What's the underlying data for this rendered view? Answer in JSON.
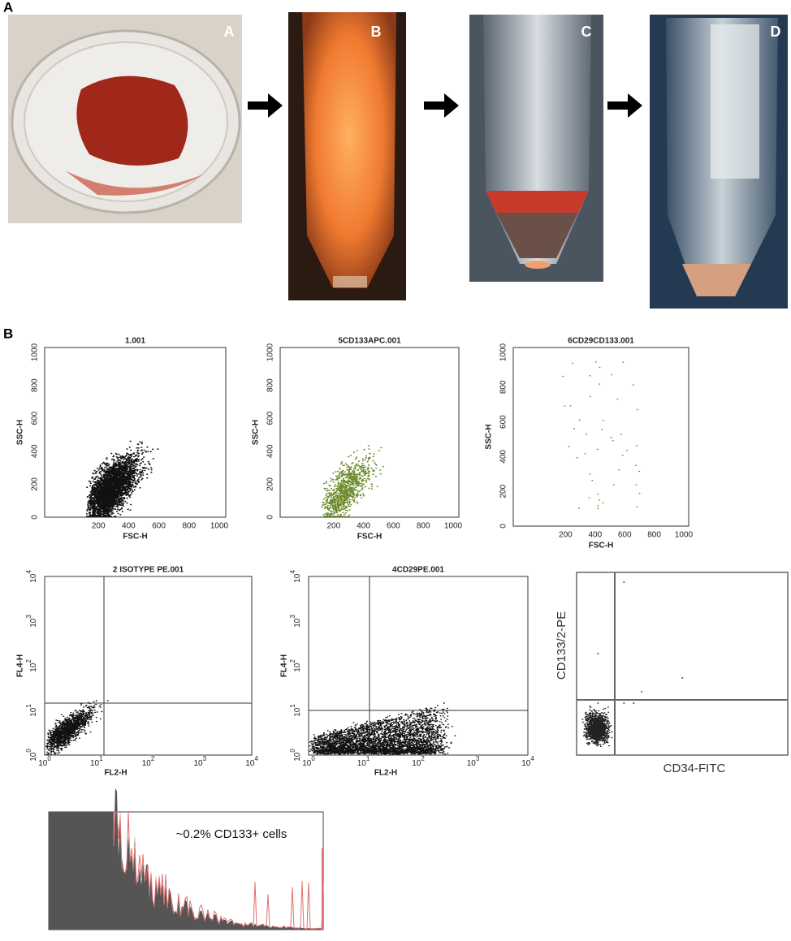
{
  "panels": {
    "a": "A",
    "b": "B"
  },
  "photos": [
    {
      "label": "A"
    },
    {
      "label": "B"
    },
    {
      "label": "C"
    },
    {
      "label": "D"
    }
  ],
  "scatter_plots": [
    {
      "title": "1.001",
      "y_label": "SSC-H",
      "x_label": "FSC-H",
      "xticks": [
        200,
        400,
        600,
        800,
        1000
      ],
      "yticks": [
        0,
        200,
        400,
        600,
        800,
        1000
      ]
    },
    {
      "title": "5CD133APC.001",
      "y_label": "SSC-H",
      "x_label": "FSC-H",
      "xticks": [
        200,
        400,
        600,
        800,
        1000
      ],
      "yticks": [
        0,
        200,
        400,
        600,
        800,
        1000
      ]
    },
    {
      "title": "6CD29CD133.001",
      "y_label": "SSC-H",
      "x_label": "FSC-H",
      "xticks": [
        200,
        400,
        600,
        800,
        1000
      ],
      "yticks": [
        0,
        200,
        400,
        600,
        800,
        1000
      ]
    }
  ],
  "log_plots": [
    {
      "title": "2 ISOTYPE PE.001",
      "y_label": "FL4-H",
      "x_label": "FL2-H",
      "xticks": [
        {
          "base": 10,
          "exp": 0
        },
        {
          "base": 10,
          "exp": 1
        },
        {
          "base": 10,
          "exp": 2
        },
        {
          "base": 10,
          "exp": 3
        },
        {
          "base": 10,
          "exp": 4
        }
      ],
      "yticks": [
        {
          "base": 10,
          "exp": 0
        },
        {
          "base": 10,
          "exp": 1
        },
        {
          "base": 10,
          "exp": 2
        },
        {
          "base": 10,
          "exp": 3
        },
        {
          "base": 10,
          "exp": 4
        }
      ]
    },
    {
      "title": "4CD29PE.001",
      "y_label": "FL4-H",
      "x_label": "FL2-H",
      "xticks": [
        {
          "base": 10,
          "exp": 0
        },
        {
          "base": 10,
          "exp": 1
        },
        {
          "base": 10,
          "exp": 2
        },
        {
          "base": 10,
          "exp": 3
        },
        {
          "base": 10,
          "exp": 4
        }
      ],
      "yticks": [
        {
          "base": 10,
          "exp": 0
        },
        {
          "base": 10,
          "exp": 1
        },
        {
          "base": 10,
          "exp": 2
        },
        {
          "base": 10,
          "exp": 3
        },
        {
          "base": 10,
          "exp": 4
        }
      ]
    }
  ],
  "gate_plot": {
    "y_label": "CD133/2-PE",
    "x_label": "CD34-FITC"
  },
  "histogram": {
    "annotation": "~0.2% CD133+ cells"
  }
}
